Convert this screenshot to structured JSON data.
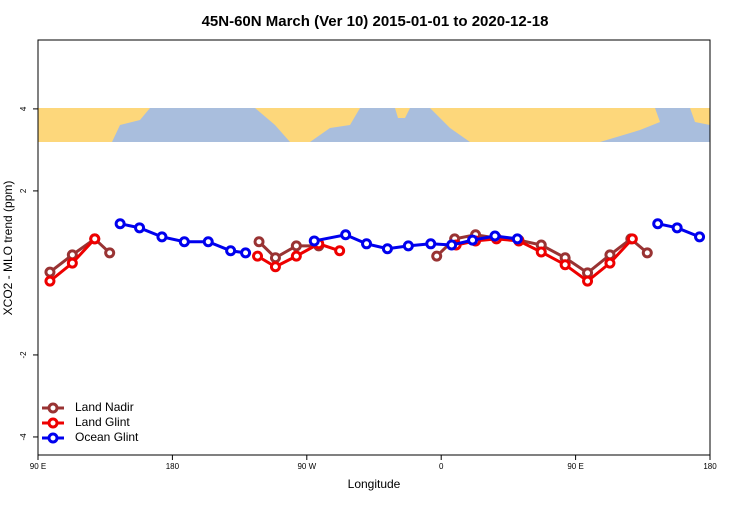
{
  "chart_data": {
    "type": "line",
    "title": "45N-60N March (Ver 10)   2015-01-01 to 2020-12-18",
    "x_label": "Longitude",
    "y_label": "XCO2 - MLO trend (ppm)",
    "xlim": [
      90,
      540
    ],
    "ylim": [
      -4.44,
      5.68
    ],
    "xticks": [
      {
        "value": 90,
        "label": "90 E"
      },
      180,
      {
        "value": 270,
        "label": "90 W"
      },
      {
        "value": 360,
        "label": "0"
      },
      {
        "value": 450,
        "label": "90 E"
      },
      {
        "value": 540,
        "label": "180"
      }
    ],
    "yticks": [
      -4,
      -2,
      2,
      4
    ],
    "legend": "bottom-left",
    "series": [
      {
        "name": "Land Nadir",
        "color": "#993333",
        "x": [
          98,
          113,
          128,
          138,
          null,
          238,
          249,
          263,
          278,
          null,
          357,
          369,
          383,
          397,
          412,
          427,
          443,
          458,
          473,
          487,
          498
        ],
        "values": [
          0.02,
          0.44,
          0.83,
          0.49,
          null,
          0.76,
          0.37,
          0.66,
          0.66,
          null,
          0.41,
          0.83,
          0.93,
          0.85,
          0.8,
          0.68,
          0.37,
          0,
          0.44,
          0.83,
          0.49
        ]
      },
      {
        "name": "Land Glint",
        "color": "#ee0000",
        "x": [
          98,
          113,
          128,
          null,
          237,
          249,
          263,
          278,
          292,
          null,
          370,
          383,
          397,
          412,
          427,
          443,
          458,
          473,
          488
        ],
        "values": [
          -0.2,
          0.24,
          0.83,
          null,
          0.41,
          0.15,
          0.41,
          0.71,
          0.54,
          null,
          0.68,
          0.78,
          0.83,
          0.78,
          0.51,
          0.2,
          -0.2,
          0.24,
          0.83
        ]
      },
      {
        "name": "Ocean Glint",
        "color": "#0000ee",
        "x": [
          145,
          158,
          173,
          188,
          204,
          219,
          229,
          null,
          275,
          296,
          310,
          324,
          338,
          353,
          367,
          381,
          396,
          411,
          null,
          505,
          518,
          533
        ],
        "values": [
          1.2,
          1.1,
          0.88,
          0.76,
          0.76,
          0.54,
          0.49,
          null,
          0.78,
          0.93,
          0.71,
          0.59,
          0.66,
          0.71,
          0.68,
          0.8,
          0.9,
          0.83,
          null,
          1.2,
          1.1,
          0.88
        ]
      }
    ]
  }
}
